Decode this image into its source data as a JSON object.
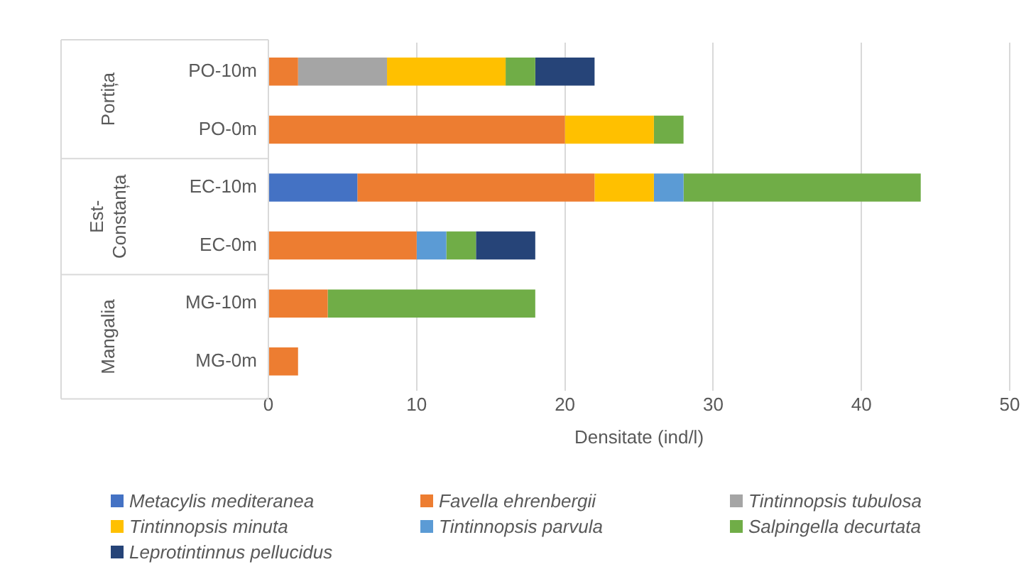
{
  "chart_data": {
    "type": "bar",
    "orientation": "horizontal",
    "stacked": true,
    "xlabel": "Densitate (ind/l)",
    "categories": [
      "PO-10m",
      "PO-0m",
      "EC-10m",
      "EC-0m",
      "MG-10m",
      "MG-0m"
    ],
    "annotations": [
      "Portița",
      "Est-Constanța",
      "Mangalia"
    ],
    "series": [
      {
        "name": "Metacylis mediteranea",
        "color": "#4472c4",
        "values": [
          0,
          0,
          6,
          0,
          0,
          0
        ]
      },
      {
        "name": "Favella ehrenbergii",
        "color": "#ed7d31",
        "values": [
          2,
          20,
          16,
          10,
          4,
          2
        ]
      },
      {
        "name": "Tintinnopsis tubulosa",
        "color": "#a5a5a5",
        "values": [
          6,
          0,
          0,
          0,
          0,
          0
        ]
      },
      {
        "name": "Tintinnopsis minuta",
        "color": "#ffc000",
        "values": [
          8,
          6,
          4,
          0,
          0,
          0
        ]
      },
      {
        "name": "Tintinnopsis parvula",
        "color": "#5b9bd5",
        "values": [
          0,
          0,
          2,
          2,
          0,
          0
        ]
      },
      {
        "name": "Salpingella decurtata",
        "color": "#70ad47",
        "values": [
          2,
          2,
          16,
          2,
          14,
          0
        ]
      },
      {
        "name": "Leprotintinnus pellucidus",
        "color": "#264478",
        "values": [
          4,
          0,
          0,
          4,
          0,
          0
        ]
      }
    ],
    "xlim": [
      0,
      50
    ],
    "xticks": [
      0,
      10,
      20,
      30,
      40,
      50
    ],
    "grid": "x",
    "legend": "bottom"
  }
}
